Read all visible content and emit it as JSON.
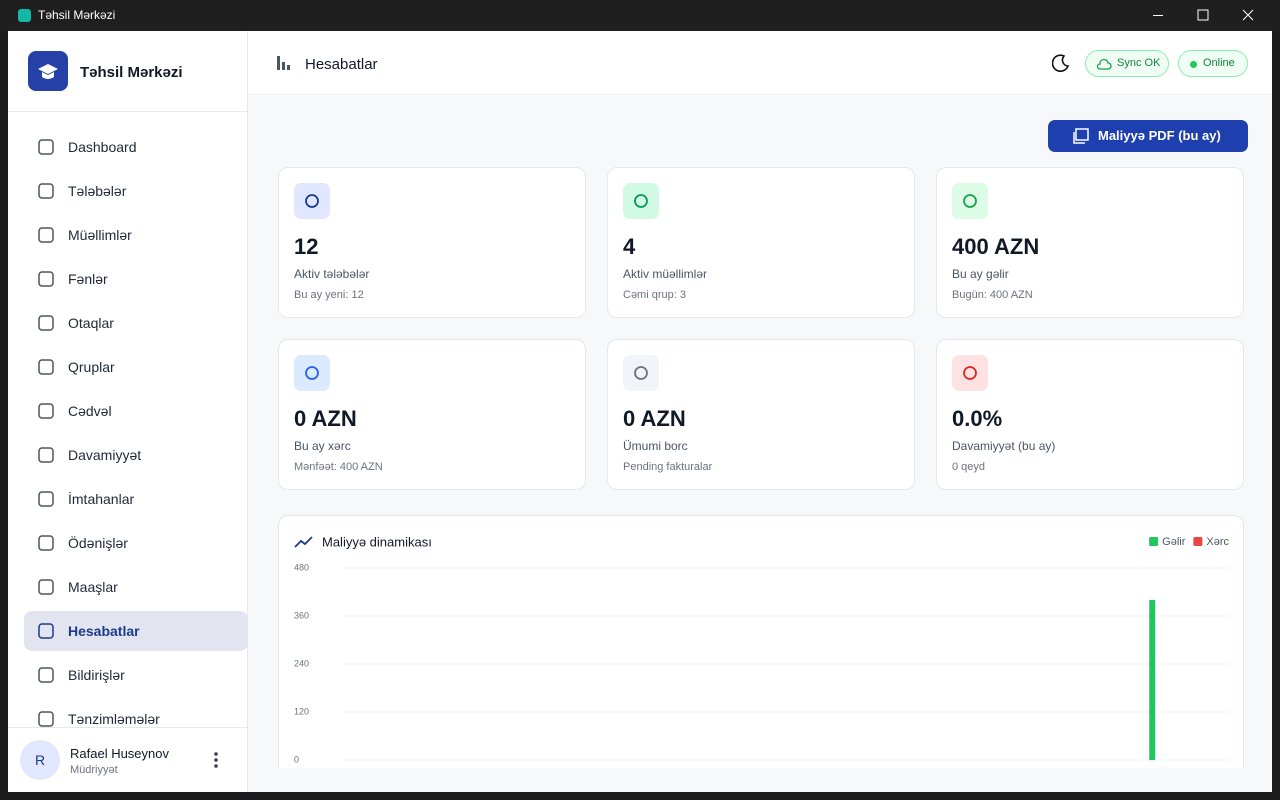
{
  "window": {
    "title": "Təhsil Mərkəzi"
  },
  "sidebar": {
    "brand": "Təhsil Mərkəzi",
    "nav": [
      "Dashboard",
      "Tələbələr",
      "Müəllimlər",
      "Fənlər",
      "Otaqlar",
      "Qruplar",
      "Cədvəl",
      "Davamiyyət",
      "İmtahanlar",
      "Ödənişlər",
      "Maaşlar",
      "Hesabatlar",
      "Bildirişlər",
      "Tənzimləmələr"
    ],
    "user": {
      "avatar": "R",
      "name": "Rafael Huseynov",
      "role": "Müdriyyət"
    }
  },
  "header": {
    "title": "Hesabatlar",
    "sync": "Sync OK",
    "status": "Online",
    "export_button": "Maliyyə PDF (bu ay)"
  },
  "cards": [
    {
      "value": "12",
      "label": "Aktiv tələbələr",
      "note": "Bu ay yeni: 12"
    },
    {
      "value": "4",
      "label": "Aktiv müəllimlər",
      "note": "Cəmi qrup: 3"
    },
    {
      "value": "400 AZN",
      "label": "Bu ay gəlir",
      "note": "Bugün: 400 AZN"
    },
    {
      "value": "0 AZN",
      "label": "Bu ay xərc",
      "note": "Mənfəət: 400 AZN"
    },
    {
      "value": "0 AZN",
      "label": "Ümumi borc",
      "note": "Pending fakturalar"
    },
    {
      "value": "0.0%",
      "label": "Davamiyyət (bu ay)",
      "note": "0 qeyd"
    }
  ],
  "chart_data": {
    "type": "bar",
    "title": "Maliyyə dinamikası",
    "categories": [
      null,
      null,
      null,
      null,
      null,
      null,
      null,
      null,
      null,
      null,
      null,
      null,
      null,
      null,
      null,
      null,
      null,
      null,
      null,
      null,
      null,
      null,
      null,
      null,
      null,
      null,
      null,
      null,
      null,
      null
    ],
    "series": [
      {
        "name": "Gəlir",
        "color": "#22c55e",
        "values": [
          0,
          0,
          0,
          0,
          0,
          0,
          0,
          0,
          0,
          0,
          0,
          0,
          0,
          0,
          0,
          0,
          0,
          0,
          0,
          0,
          0,
          0,
          0,
          0,
          0,
          0,
          0,
          400,
          0,
          0
        ]
      },
      {
        "name": "Xərc",
        "color": "#ef4444",
        "values": [
          0,
          0,
          0,
          0,
          0,
          0,
          0,
          0,
          0,
          0,
          0,
          0,
          0,
          0,
          0,
          0,
          0,
          0,
          0,
          0,
          0,
          0,
          0,
          0,
          0,
          0,
          0,
          0,
          0,
          0
        ]
      }
    ],
    "ylim": [
      0,
      480
    ],
    "yticks": [
      0,
      120,
      240,
      360,
      480
    ],
    "grid": true
  }
}
